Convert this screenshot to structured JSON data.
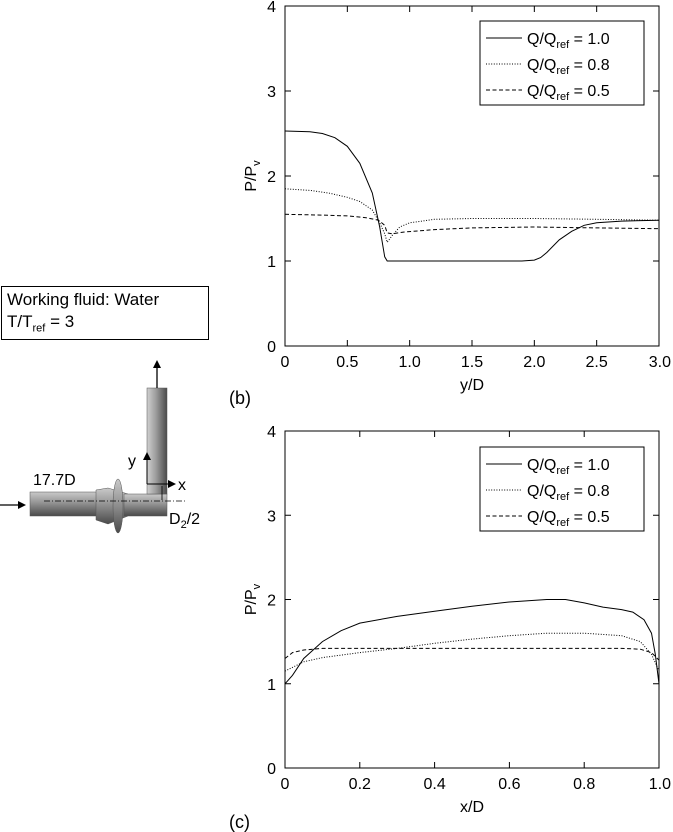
{
  "legend_entries": [
    {
      "main": "Q/Q",
      "sub": "ref",
      "value": " = 1.0",
      "dash": ""
    },
    {
      "main": "Q/Q",
      "sub": "ref",
      "value": " = 0.8",
      "dash": "1,1.6"
    },
    {
      "main": "Q/Q",
      "sub": "ref",
      "value": " = 0.5",
      "dash": "4,2.5"
    }
  ],
  "info_box": {
    "line1": "Working fluid: Water",
    "line2_main": "T/T",
    "line2_sub": "ref",
    "line2_value": " = 3"
  },
  "schematic": {
    "length_label": "17.7D",
    "y_label": "y",
    "x_label": "x",
    "diam_main": "D",
    "diam_sub": "2",
    "diam_suffix": "/2"
  },
  "chart_data": [
    {
      "panel_label": "(b)",
      "type": "line",
      "xlabel": "y/D",
      "ylabel_main": "P/P",
      "ylabel_sub": "v",
      "xlim": [
        0,
        3.0
      ],
      "ylim": [
        0,
        4
      ],
      "xticks": [
        0,
        0.5,
        1.0,
        1.5,
        2.0,
        2.5,
        3.0
      ],
      "xtick_labels": [
        "0",
        "0.5",
        "1.0",
        "1.5",
        "2.0",
        "2.5",
        "3.0"
      ],
      "yticks": [
        0,
        1,
        2,
        3,
        4
      ],
      "ytick_labels": [
        "0",
        "1",
        "2",
        "3",
        "4"
      ],
      "legend_position": "top-right",
      "series": [
        {
          "name": "Q/Qref = 1.0",
          "style": "solid",
          "points": [
            [
              0,
              2.53
            ],
            [
              0.2,
              2.52
            ],
            [
              0.3,
              2.5
            ],
            [
              0.4,
              2.45
            ],
            [
              0.5,
              2.35
            ],
            [
              0.6,
              2.15
            ],
            [
              0.7,
              1.8
            ],
            [
              0.76,
              1.4
            ],
            [
              0.8,
              1.05
            ],
            [
              0.82,
              1.0
            ],
            [
              1.0,
              1.0
            ],
            [
              1.5,
              1.0
            ],
            [
              1.9,
              1.0
            ],
            [
              2.0,
              1.01
            ],
            [
              2.05,
              1.04
            ],
            [
              2.1,
              1.1
            ],
            [
              2.2,
              1.25
            ],
            [
              2.3,
              1.35
            ],
            [
              2.4,
              1.42
            ],
            [
              2.5,
              1.45
            ],
            [
              2.7,
              1.47
            ],
            [
              3.0,
              1.48
            ]
          ]
        },
        {
          "name": "Q/Qref = 0.8",
          "style": "dotted",
          "points": [
            [
              0,
              1.85
            ],
            [
              0.2,
              1.83
            ],
            [
              0.35,
              1.8
            ],
            [
              0.5,
              1.75
            ],
            [
              0.6,
              1.7
            ],
            [
              0.7,
              1.6
            ],
            [
              0.76,
              1.45
            ],
            [
              0.8,
              1.32
            ],
            [
              0.82,
              1.22
            ],
            [
              0.86,
              1.3
            ],
            [
              0.92,
              1.4
            ],
            [
              1.0,
              1.45
            ],
            [
              1.2,
              1.49
            ],
            [
              1.5,
              1.5
            ],
            [
              2.0,
              1.5
            ],
            [
              2.5,
              1.49
            ],
            [
              3.0,
              1.48
            ]
          ]
        },
        {
          "name": "Q/Qref = 0.5",
          "style": "dashed",
          "points": [
            [
              0,
              1.55
            ],
            [
              0.3,
              1.54
            ],
            [
              0.5,
              1.53
            ],
            [
              0.65,
              1.51
            ],
            [
              0.75,
              1.48
            ],
            [
              0.8,
              1.42
            ],
            [
              0.82,
              1.33
            ],
            [
              0.86,
              1.32
            ],
            [
              0.95,
              1.34
            ],
            [
              1.2,
              1.37
            ],
            [
              1.5,
              1.39
            ],
            [
              2.0,
              1.4
            ],
            [
              2.5,
              1.39
            ],
            [
              3.0,
              1.38
            ]
          ]
        }
      ]
    },
    {
      "panel_label": "(c)",
      "type": "line",
      "xlabel": "x/D",
      "ylabel_main": "P/P",
      "ylabel_sub": "v",
      "xlim": [
        0,
        1.0
      ],
      "ylim": [
        0,
        4
      ],
      "xticks": [
        0,
        0.2,
        0.4,
        0.6,
        0.8,
        1.0
      ],
      "xtick_labels": [
        "0",
        "0.2",
        "0.4",
        "0.6",
        "0.8",
        "1.0"
      ],
      "yticks": [
        0,
        1,
        2,
        3,
        4
      ],
      "ytick_labels": [
        "0",
        "1",
        "2",
        "3",
        "4"
      ],
      "legend_position": "top-right",
      "series": [
        {
          "name": "Q/Qref = 1.0",
          "style": "solid",
          "points": [
            [
              0,
              1.0
            ],
            [
              0.02,
              1.1
            ],
            [
              0.05,
              1.3
            ],
            [
              0.1,
              1.5
            ],
            [
              0.15,
              1.63
            ],
            [
              0.2,
              1.72
            ],
            [
              0.3,
              1.8
            ],
            [
              0.4,
              1.86
            ],
            [
              0.5,
              1.92
            ],
            [
              0.6,
              1.97
            ],
            [
              0.7,
              2.0
            ],
            [
              0.75,
              2.0
            ],
            [
              0.8,
              1.96
            ],
            [
              0.85,
              1.91
            ],
            [
              0.9,
              1.88
            ],
            [
              0.93,
              1.85
            ],
            [
              0.96,
              1.76
            ],
            [
              0.98,
              1.6
            ],
            [
              0.99,
              1.35
            ],
            [
              1.0,
              1.0
            ]
          ]
        },
        {
          "name": "Q/Qref = 0.8",
          "style": "dotted",
          "points": [
            [
              0,
              1.15
            ],
            [
              0.05,
              1.26
            ],
            [
              0.1,
              1.31
            ],
            [
              0.2,
              1.37
            ],
            [
              0.3,
              1.42
            ],
            [
              0.4,
              1.48
            ],
            [
              0.5,
              1.53
            ],
            [
              0.6,
              1.57
            ],
            [
              0.7,
              1.6
            ],
            [
              0.8,
              1.6
            ],
            [
              0.9,
              1.57
            ],
            [
              0.95,
              1.5
            ],
            [
              0.98,
              1.35
            ],
            [
              1.0,
              1.15
            ]
          ]
        },
        {
          "name": "Q/Qref = 0.5",
          "style": "dashed",
          "points": [
            [
              0,
              1.3
            ],
            [
              0.02,
              1.37
            ],
            [
              0.05,
              1.4
            ],
            [
              0.1,
              1.42
            ],
            [
              0.3,
              1.42
            ],
            [
              0.5,
              1.42
            ],
            [
              0.7,
              1.42
            ],
            [
              0.9,
              1.42
            ],
            [
              0.95,
              1.41
            ],
            [
              0.98,
              1.37
            ],
            [
              1.0,
              1.28
            ]
          ]
        }
      ]
    }
  ]
}
